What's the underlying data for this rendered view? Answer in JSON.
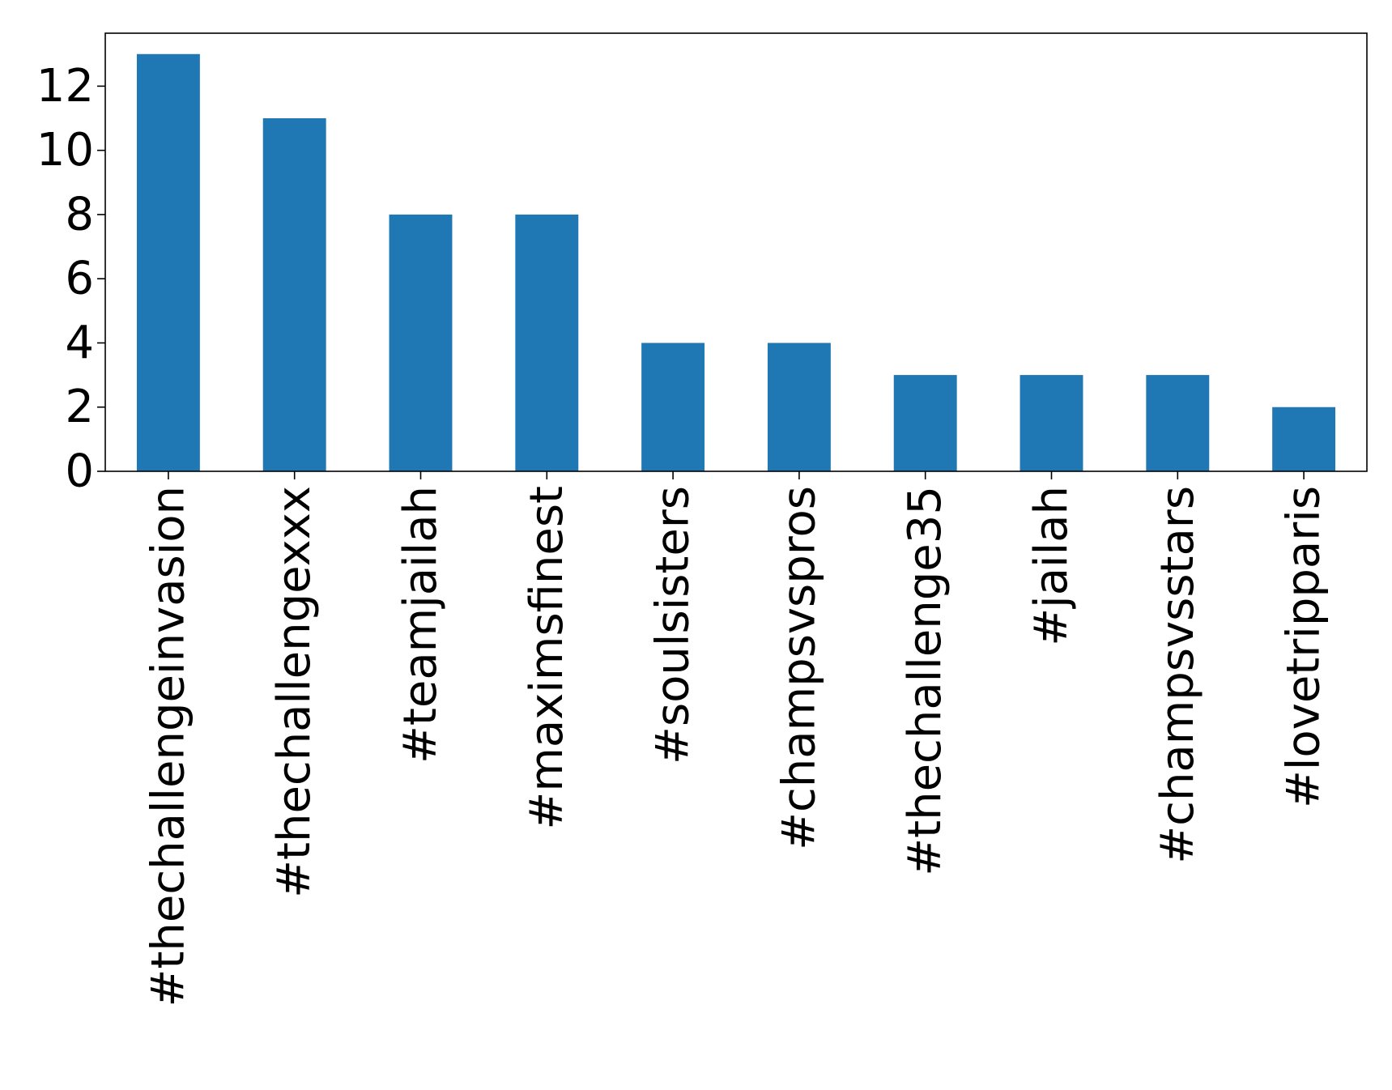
{
  "chart_data": {
    "type": "bar",
    "title": "",
    "xlabel": "",
    "ylabel": "",
    "categories": [
      "#thechallengeinvasion",
      "#thechallengexxx",
      "#teamjailah",
      "#maximsfinest",
      "#soulsisters",
      "#champsvspros",
      "#thechallenge35",
      "#jailah",
      "#champsvsstars",
      "#lovetripparis"
    ],
    "values": [
      13,
      11,
      8,
      8,
      4,
      4,
      3,
      3,
      3,
      2
    ],
    "ylim": [
      0,
      13.65
    ],
    "yticks": [
      0,
      2,
      4,
      6,
      8,
      10,
      12
    ],
    "ytick_labels": [
      "0",
      "2",
      "4",
      "6",
      "8",
      "10",
      "12"
    ],
    "grid": false,
    "legend": "none",
    "bar_color": "#1f77b4"
  }
}
